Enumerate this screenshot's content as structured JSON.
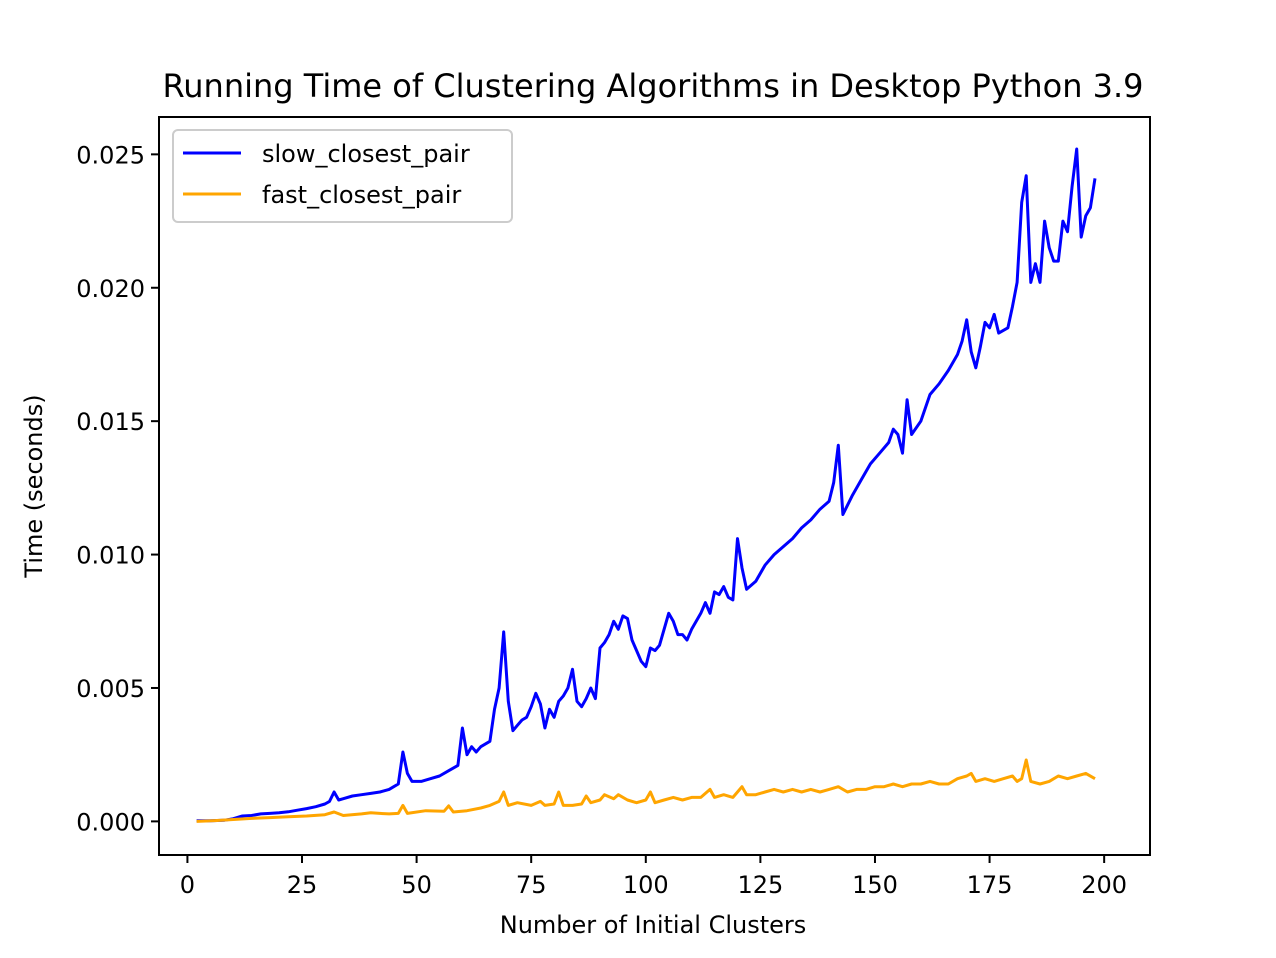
{
  "chart_data": {
    "type": "line",
    "title": "Running Time of Clustering Algorithms in Desktop Python 3.9",
    "xlabel": "Number of Initial Clusters",
    "ylabel": "Time (seconds)",
    "xlim": [
      -6.2,
      210
    ],
    "ylim": [
      -0.00126,
      0.0264
    ],
    "xticks": [
      0,
      25,
      50,
      75,
      100,
      125,
      150,
      175,
      200
    ],
    "yticks": [
      0.0,
      0.005,
      0.01,
      0.015,
      0.02,
      0.025
    ],
    "x_tick_labels": [
      "0",
      "25",
      "50",
      "75",
      "100",
      "125",
      "150",
      "175",
      "200"
    ],
    "y_tick_labels": [
      "0.000",
      "0.005",
      "0.010",
      "0.015",
      "0.020",
      "0.025"
    ],
    "grid": false,
    "legend_position": "top-left",
    "series": [
      {
        "name": "slow_closest_pair",
        "color": "#0000ff",
        "points": [
          [
            2,
            2e-05
          ],
          [
            5,
            2e-05
          ],
          [
            8,
            4e-05
          ],
          [
            10,
            0.0001
          ],
          [
            12,
            0.0002
          ],
          [
            14,
            0.00022
          ],
          [
            16,
            0.00028
          ],
          [
            18,
            0.0003
          ],
          [
            20,
            0.00032
          ],
          [
            22,
            0.00036
          ],
          [
            24,
            0.00042
          ],
          [
            26,
            0.00048
          ],
          [
            28,
            0.00055
          ],
          [
            30,
            0.00065
          ],
          [
            31,
            0.00075
          ],
          [
            32,
            0.0011
          ],
          [
            33,
            0.0008
          ],
          [
            34,
            0.00085
          ],
          [
            36,
            0.00095
          ],
          [
            38,
            0.001
          ],
          [
            40,
            0.00105
          ],
          [
            42,
            0.0011
          ],
          [
            44,
            0.0012
          ],
          [
            45,
            0.0013
          ],
          [
            46,
            0.0014
          ],
          [
            47,
            0.0026
          ],
          [
            48,
            0.0018
          ],
          [
            49,
            0.0015
          ],
          [
            51,
            0.0015
          ],
          [
            53,
            0.0016
          ],
          [
            55,
            0.0017
          ],
          [
            57,
            0.0019
          ],
          [
            59,
            0.0021
          ],
          [
            60,
            0.0035
          ],
          [
            61,
            0.0025
          ],
          [
            62,
            0.0028
          ],
          [
            63,
            0.0026
          ],
          [
            64,
            0.0028
          ],
          [
            66,
            0.003
          ],
          [
            67,
            0.0042
          ],
          [
            68,
            0.005
          ],
          [
            69,
            0.0071
          ],
          [
            70,
            0.0045
          ],
          [
            71,
            0.0034
          ],
          [
            72,
            0.0036
          ],
          [
            73,
            0.0038
          ],
          [
            74,
            0.0039
          ],
          [
            75,
            0.0043
          ],
          [
            76,
            0.0048
          ],
          [
            77,
            0.0044
          ],
          [
            78,
            0.0035
          ],
          [
            79,
            0.0042
          ],
          [
            80,
            0.0039
          ],
          [
            81,
            0.0045
          ],
          [
            82,
            0.0047
          ],
          [
            83,
            0.005
          ],
          [
            84,
            0.0057
          ],
          [
            85,
            0.0045
          ],
          [
            86,
            0.0043
          ],
          [
            87,
            0.0046
          ],
          [
            88,
            0.005
          ],
          [
            89,
            0.0046
          ],
          [
            90,
            0.0065
          ],
          [
            91,
            0.0067
          ],
          [
            92,
            0.007
          ],
          [
            93,
            0.0075
          ],
          [
            94,
            0.0072
          ],
          [
            95,
            0.0077
          ],
          [
            96,
            0.0076
          ],
          [
            97,
            0.0068
          ],
          [
            98,
            0.0064
          ],
          [
            99,
            0.006
          ],
          [
            100,
            0.0058
          ],
          [
            101,
            0.0065
          ],
          [
            102,
            0.0064
          ],
          [
            103,
            0.0066
          ],
          [
            104,
            0.0072
          ],
          [
            105,
            0.0078
          ],
          [
            106,
            0.0075
          ],
          [
            107,
            0.007
          ],
          [
            108,
            0.007
          ],
          [
            109,
            0.0068
          ],
          [
            110,
            0.0072
          ],
          [
            111,
            0.0075
          ],
          [
            112,
            0.0078
          ],
          [
            113,
            0.0082
          ],
          [
            114,
            0.0078
          ],
          [
            115,
            0.0086
          ],
          [
            116,
            0.0085
          ],
          [
            117,
            0.0088
          ],
          [
            118,
            0.0084
          ],
          [
            119,
            0.0083
          ],
          [
            120,
            0.0106
          ],
          [
            121,
            0.0095
          ],
          [
            122,
            0.0087
          ],
          [
            124,
            0.009
          ],
          [
            126,
            0.0096
          ],
          [
            128,
            0.01
          ],
          [
            130,
            0.0103
          ],
          [
            132,
            0.0106
          ],
          [
            134,
            0.011
          ],
          [
            136,
            0.0113
          ],
          [
            138,
            0.0117
          ],
          [
            140,
            0.012
          ],
          [
            141,
            0.0127
          ],
          [
            142,
            0.0141
          ],
          [
            143,
            0.0115
          ],
          [
            145,
            0.0122
          ],
          [
            147,
            0.0128
          ],
          [
            149,
            0.0134
          ],
          [
            151,
            0.0138
          ],
          [
            153,
            0.0142
          ],
          [
            154,
            0.0147
          ],
          [
            155,
            0.0145
          ],
          [
            156,
            0.0138
          ],
          [
            157,
            0.0158
          ],
          [
            158,
            0.0145
          ],
          [
            160,
            0.015
          ],
          [
            162,
            0.016
          ],
          [
            164,
            0.0164
          ],
          [
            166,
            0.0169
          ],
          [
            168,
            0.0175
          ],
          [
            169,
            0.018
          ],
          [
            170,
            0.0188
          ],
          [
            171,
            0.0176
          ],
          [
            172,
            0.017
          ],
          [
            173,
            0.0178
          ],
          [
            174,
            0.0187
          ],
          [
            175,
            0.0185
          ],
          [
            176,
            0.019
          ],
          [
            177,
            0.0183
          ],
          [
            179,
            0.0185
          ],
          [
            180,
            0.0193
          ],
          [
            181,
            0.0202
          ],
          [
            182,
            0.0232
          ],
          [
            183,
            0.0242
          ],
          [
            184,
            0.0202
          ],
          [
            185,
            0.0209
          ],
          [
            186,
            0.0202
          ],
          [
            187,
            0.0225
          ],
          [
            188,
            0.0215
          ],
          [
            189,
            0.021
          ],
          [
            190,
            0.021
          ],
          [
            191,
            0.0225
          ],
          [
            192,
            0.0221
          ],
          [
            193,
            0.0238
          ],
          [
            194,
            0.0252
          ],
          [
            195,
            0.0219
          ],
          [
            196,
            0.0227
          ],
          [
            197,
            0.023
          ],
          [
            198,
            0.0241
          ]
        ]
      },
      {
        "name": "fast_closest_pair",
        "color": "#ffa500",
        "points": [
          [
            2,
            0.0
          ],
          [
            6,
            3e-05
          ],
          [
            10,
            7e-05
          ],
          [
            14,
            0.00011
          ],
          [
            18,
            0.00014
          ],
          [
            22,
            0.00017
          ],
          [
            26,
            0.0002
          ],
          [
            30,
            0.00025
          ],
          [
            32,
            0.00035
          ],
          [
            34,
            0.00022
          ],
          [
            38,
            0.00028
          ],
          [
            40,
            0.00032
          ],
          [
            42,
            0.0003
          ],
          [
            44,
            0.00028
          ],
          [
            46,
            0.0003
          ],
          [
            47,
            0.0006
          ],
          [
            48,
            0.0003
          ],
          [
            52,
            0.0004
          ],
          [
            56,
            0.00038
          ],
          [
            57,
            0.00058
          ],
          [
            58,
            0.00035
          ],
          [
            61,
            0.0004
          ],
          [
            64,
            0.0005
          ],
          [
            66,
            0.0006
          ],
          [
            68,
            0.00075
          ],
          [
            69,
            0.0011
          ],
          [
            70,
            0.0006
          ],
          [
            72,
            0.0007
          ],
          [
            75,
            0.0006
          ],
          [
            77,
            0.00075
          ],
          [
            78,
            0.0006
          ],
          [
            80,
            0.00065
          ],
          [
            81,
            0.0011
          ],
          [
            82,
            0.0006
          ],
          [
            84,
            0.0006
          ],
          [
            86,
            0.00065
          ],
          [
            87,
            0.00095
          ],
          [
            88,
            0.0007
          ],
          [
            90,
            0.0008
          ],
          [
            91,
            0.001
          ],
          [
            93,
            0.00085
          ],
          [
            94,
            0.001
          ],
          [
            96,
            0.0008
          ],
          [
            98,
            0.0007
          ],
          [
            100,
            0.0008
          ],
          [
            101,
            0.0011
          ],
          [
            102,
            0.0007
          ],
          [
            104,
            0.0008
          ],
          [
            106,
            0.0009
          ],
          [
            108,
            0.0008
          ],
          [
            110,
            0.0009
          ],
          [
            112,
            0.0009
          ],
          [
            114,
            0.0012
          ],
          [
            115,
            0.0009
          ],
          [
            117,
            0.001
          ],
          [
            119,
            0.0009
          ],
          [
            120,
            0.0011
          ],
          [
            121,
            0.0013
          ],
          [
            122,
            0.001
          ],
          [
            124,
            0.001
          ],
          [
            126,
            0.0011
          ],
          [
            128,
            0.0012
          ],
          [
            130,
            0.0011
          ],
          [
            132,
            0.0012
          ],
          [
            134,
            0.0011
          ],
          [
            136,
            0.0012
          ],
          [
            138,
            0.0011
          ],
          [
            140,
            0.0012
          ],
          [
            142,
            0.0013
          ],
          [
            144,
            0.0011
          ],
          [
            146,
            0.0012
          ],
          [
            148,
            0.0012
          ],
          [
            150,
            0.0013
          ],
          [
            152,
            0.0013
          ],
          [
            154,
            0.0014
          ],
          [
            156,
            0.0013
          ],
          [
            158,
            0.0014
          ],
          [
            160,
            0.0014
          ],
          [
            162,
            0.0015
          ],
          [
            164,
            0.0014
          ],
          [
            166,
            0.0014
          ],
          [
            168,
            0.0016
          ],
          [
            170,
            0.0017
          ],
          [
            171,
            0.0018
          ],
          [
            172,
            0.0015
          ],
          [
            174,
            0.0016
          ],
          [
            176,
            0.0015
          ],
          [
            178,
            0.0016
          ],
          [
            180,
            0.0017
          ],
          [
            181,
            0.0015
          ],
          [
            182,
            0.0016
          ],
          [
            183,
            0.0023
          ],
          [
            184,
            0.0015
          ],
          [
            186,
            0.0014
          ],
          [
            188,
            0.0015
          ],
          [
            190,
            0.0017
          ],
          [
            192,
            0.0016
          ],
          [
            194,
            0.0017
          ],
          [
            196,
            0.0018
          ],
          [
            198,
            0.0016
          ]
        ]
      }
    ]
  }
}
